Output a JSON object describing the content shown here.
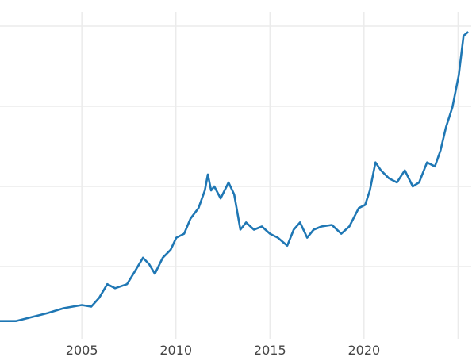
{
  "chart_data": {
    "type": "line",
    "title": "",
    "xlabel": "",
    "ylabel": "",
    "xlim": [
      2000.65,
      2025.7
    ],
    "ylim": [
      0,
      4
    ],
    "x_ticks": [
      2005,
      2010,
      2015,
      2020,
      2025
    ],
    "x_tick_labels": [
      "2005",
      "2010",
      "2015",
      "2020",
      ""
    ],
    "y_gridlines": [
      1,
      2,
      3,
      4
    ],
    "grid": true,
    "line_color": "#1f77b4",
    "grid_color": "#ebebeb",
    "series": [
      {
        "x": [
          2000.65,
          2001.49,
          2002.34,
          2003.18,
          2004.03,
          2005.0,
          2005.5,
          2005.92,
          2006.35,
          2006.77,
          2007.4,
          2007.82,
          2008.25,
          2008.58,
          2008.88,
          2009.3,
          2009.72,
          2010.02,
          2010.44,
          2010.78,
          2011.2,
          2011.54,
          2011.7,
          2011.87,
          2012.04,
          2012.38,
          2012.8,
          2013.1,
          2013.43,
          2013.73,
          2014.15,
          2014.57,
          2015.0,
          2015.42,
          2015.92,
          2016.26,
          2016.6,
          2016.98,
          2017.32,
          2017.74,
          2018.29,
          2018.79,
          2019.22,
          2019.72,
          2020.06,
          2020.31,
          2020.61,
          2020.9,
          2021.33,
          2021.75,
          2022.17,
          2022.59,
          2022.93,
          2023.35,
          2023.77,
          2024.07,
          2024.36,
          2024.7,
          2025.04,
          2025.29,
          2025.54
        ],
        "y": [
          0.32,
          0.32,
          0.37,
          0.42,
          0.48,
          0.52,
          0.5,
          0.61,
          0.78,
          0.73,
          0.78,
          0.94,
          1.11,
          1.03,
          0.91,
          1.11,
          1.21,
          1.36,
          1.41,
          1.6,
          1.73,
          1.95,
          2.15,
          1.95,
          2.0,
          1.85,
          2.05,
          1.9,
          1.46,
          1.55,
          1.46,
          1.5,
          1.41,
          1.36,
          1.26,
          1.46,
          1.55,
          1.36,
          1.46,
          1.5,
          1.52,
          1.41,
          1.5,
          1.73,
          1.77,
          1.95,
          2.3,
          2.2,
          2.1,
          2.05,
          2.2,
          2.0,
          2.05,
          2.3,
          2.25,
          2.45,
          2.74,
          2.99,
          3.39,
          3.88,
          3.93
        ]
      }
    ]
  }
}
